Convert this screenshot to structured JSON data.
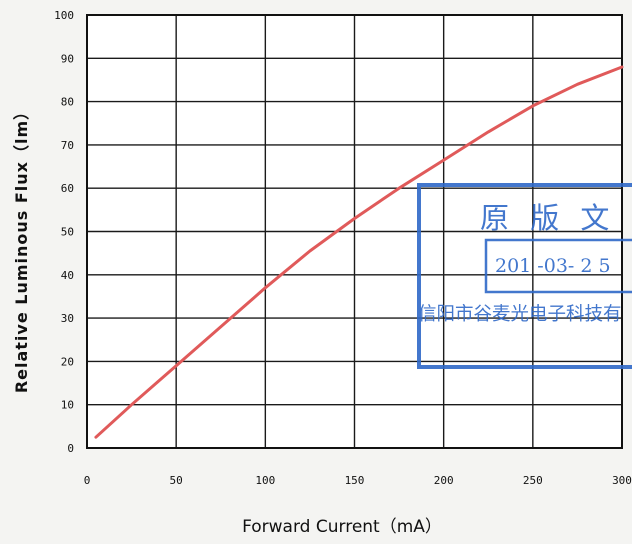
{
  "chart_data": {
    "type": "line",
    "title": "",
    "xlabel": "Forward Current（mA）",
    "ylabel": "Relative Luminous Flux（lm）",
    "xlim": [
      0,
      300
    ],
    "ylim": [
      0,
      100
    ],
    "xticks": [
      0,
      50,
      100,
      150,
      200,
      250,
      300
    ],
    "yticks": [
      0,
      10,
      20,
      30,
      40,
      50,
      60,
      70,
      80,
      90,
      100
    ],
    "grid": true,
    "line_color": "#e05a5a",
    "series": [
      {
        "x": [
          5,
          25,
          50,
          75,
          100,
          125,
          150,
          175,
          200,
          225,
          250,
          275,
          300
        ],
        "y": [
          2.5,
          10,
          19,
          28,
          37,
          45.5,
          53,
          60,
          66.5,
          73,
          79,
          84,
          88
        ]
      }
    ]
  },
  "stamp": {
    "line1": "原 版 文",
    "line2": "201 -03- 2 5",
    "line3": "信阳市谷麦光电子科技有",
    "color": "#2f69c8"
  }
}
